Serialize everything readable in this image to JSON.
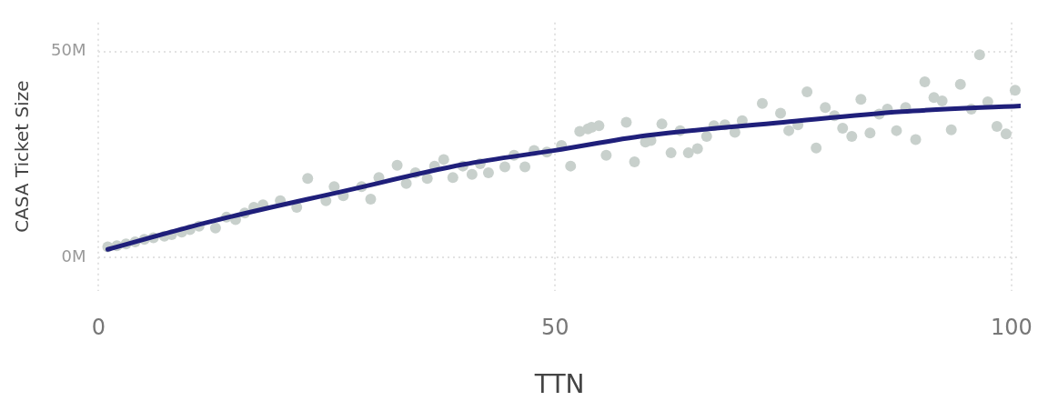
{
  "chart_data": {
    "type": "scatter",
    "xlabel": "TTN",
    "ylabel": "CASA Ticket Size",
    "xlim": [
      0,
      101
    ],
    "ylim": [
      -8,
      57
    ],
    "xticks": [
      0,
      50,
      100
    ],
    "yticks": [
      {
        "value": 0,
        "label": "0M"
      },
      {
        "value": 50,
        "label": "50M"
      }
    ],
    "grid": true,
    "legend": false,
    "marker": "circle",
    "series": [
      {
        "type": "scatter",
        "color": "#c8d0cc",
        "x": [
          1,
          2,
          3,
          4,
          5,
          6,
          7.2,
          8,
          9.1,
          10,
          11,
          12.8,
          14,
          15,
          16,
          17,
          18,
          19.9,
          21.7,
          22.9,
          24.9,
          25.8,
          26.8,
          28.8,
          29.8,
          30.7,
          32.7,
          33.7,
          34.7,
          36,
          36.8,
          37.8,
          38.8,
          39.9,
          40.9,
          41.8,
          42.7,
          44.5,
          45.5,
          46.7,
          47.7,
          49.1,
          50.7,
          51.7,
          52.7,
          53.6,
          54,
          54.8,
          55.6,
          57.8,
          58.7,
          59.9,
          60.5,
          61.7,
          62.7,
          63.7,
          64.6,
          65.6,
          66.6,
          67.4,
          68.6,
          69.7,
          70.5,
          72.7,
          74.7,
          75.6,
          76.6,
          77.6,
          78.6,
          79.6,
          80.6,
          81.5,
          82.5,
          83.5,
          84.5,
          85.5,
          86.4,
          87.4,
          88.4,
          89.5,
          90.5,
          91.5,
          92.4,
          93.4,
          94.4,
          95.6,
          96.5,
          97.4,
          98.4,
          99.4,
          100.4
        ],
        "values": [
          2.6,
          2.9,
          3.3,
          3.8,
          4.4,
          4.8,
          5.2,
          5.6,
          6.2,
          6.8,
          7.6,
          7.2,
          9.8,
          9.2,
          10.8,
          12.2,
          12.8,
          13.8,
          12.2,
          19.2,
          13.8,
          17.2,
          15,
          17.2,
          14.2,
          19.4,
          22.4,
          18,
          20.6,
          19.2,
          22.2,
          23.8,
          19.4,
          22.2,
          20.2,
          22.8,
          20.6,
          22,
          24.8,
          22,
          26,
          25.6,
          27.2,
          22.2,
          30.6,
          31.2,
          31.6,
          32,
          24.8,
          32.8,
          23.2,
          28,
          28.4,
          32.4,
          25.4,
          30.8,
          25.4,
          26.4,
          29.4,
          32,
          32.2,
          30.4,
          33.2,
          37.4,
          35,
          30.8,
          32.2,
          40.2,
          26.6,
          36.4,
          34.4,
          31.4,
          29.4,
          38.4,
          30.2,
          34.8,
          36,
          30.8,
          36.4,
          28.6,
          42.6,
          38.8,
          38,
          31,
          42,
          36,
          49.2,
          37.8,
          31.8,
          30,
          40.6
        ]
      },
      {
        "type": "line",
        "color": "#1f1f7a",
        "marker": "none",
        "line_style": "solid",
        "x": [
          1,
          12,
          27,
          40,
          50,
          60,
          75,
          88,
          101
        ],
        "values": [
          2,
          8.6,
          16.2,
          22.6,
          26,
          29.6,
          32.8,
          35.4,
          36.8
        ]
      }
    ]
  }
}
